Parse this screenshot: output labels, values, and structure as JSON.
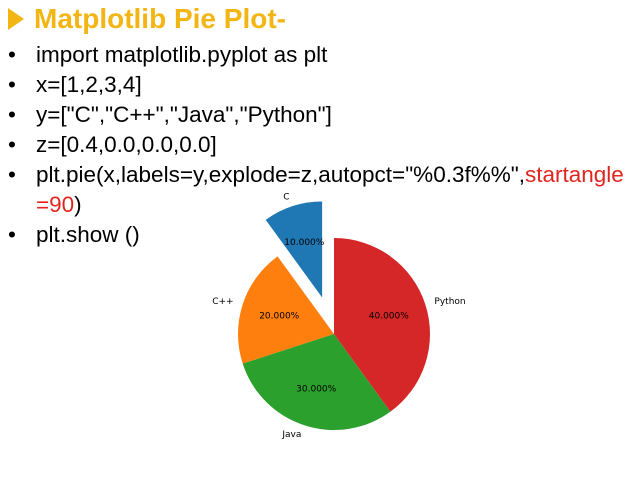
{
  "slide": {
    "title": "Matplotlib Pie Plot-",
    "title_color": "#f2b514",
    "bullets": [
      "import matplotlib.pyplot as plt",
      "x=[1,2,3,4]",
      "y=[\"C\",\"C++\",\"Java\",\"Python\"]",
      "z=[0.4,0.0,0.0,0.0]"
    ],
    "code_line": {
      "prefix": "plt.pie(x,labels=y,explode=z,autopct=\"%0.3f%%\",",
      "highlight": "startangle=90",
      "suffix": ")",
      "highlight_color": "#e0261c"
    },
    "last_bullet": "plt.show ()",
    "bullet_symbol": "•"
  },
  "chart_data": {
    "type": "pie",
    "startangle": 90,
    "labels": [
      "C",
      "C++",
      "Java",
      "Python"
    ],
    "values": [
      1,
      2,
      3,
      4
    ],
    "explode": [
      0.4,
      0.0,
      0.0,
      0.0
    ],
    "autopct_labels": [
      "10.000%",
      "20.000%",
      "30.000%",
      "40.000%"
    ],
    "colors": [
      "#1f77b4",
      "#ff7f0e",
      "#2ca02c",
      "#d62728"
    ]
  }
}
